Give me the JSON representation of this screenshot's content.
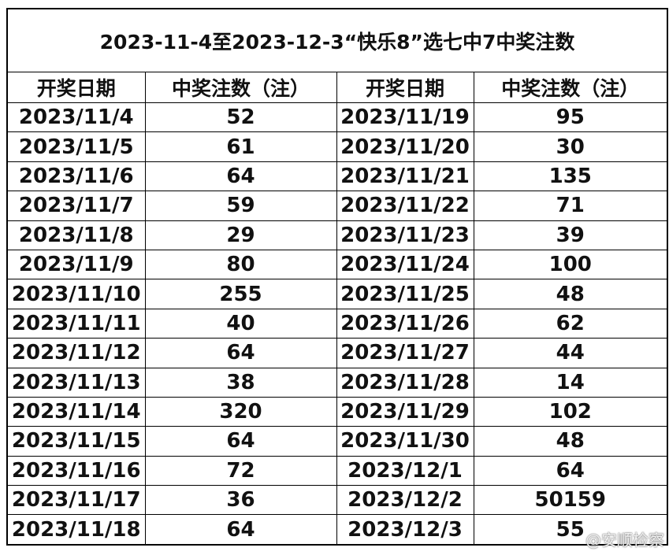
{
  "title": "2023-11-4至2023-12-3“快乐8”选七中7中奖注数",
  "headers": [
    "开奖日期",
    "中奖注数（注）",
    "开奖日期",
    "中奖注数（注）"
  ],
  "rows": [
    [
      "2023/11/4",
      "52",
      "2023/11/19",
      "95"
    ],
    [
      "2023/11/5",
      "61",
      "2023/11/20",
      "30"
    ],
    [
      "2023/11/6",
      "64",
      "2023/11/21",
      "135"
    ],
    [
      "2023/11/7",
      "59",
      "2023/11/22",
      "71"
    ],
    [
      "2023/11/8",
      "29",
      "2023/11/23",
      "39"
    ],
    [
      "2023/11/9",
      "80",
      "2023/11/24",
      "100"
    ],
    [
      "2023/11/10",
      "255",
      "2023/11/25",
      "48"
    ],
    [
      "2023/11/11",
      "40",
      "2023/11/26",
      "62"
    ],
    [
      "2023/11/12",
      "64",
      "2023/11/27",
      "44"
    ],
    [
      "2023/11/13",
      "38",
      "2023/11/28",
      "14"
    ],
    [
      "2023/11/14",
      "320",
      "2023/11/29",
      "102"
    ],
    [
      "2023/11/15",
      "64",
      "2023/11/30",
      "48"
    ],
    [
      "2023/11/16",
      "72",
      "2023/12/1",
      "64"
    ],
    [
      "2023/11/17",
      "36",
      "2023/12/2",
      "50159"
    ],
    [
      "2023/11/18",
      "64",
      "2023/12/3",
      "55"
    ]
  ],
  "watermark": "@安顺检察"
}
